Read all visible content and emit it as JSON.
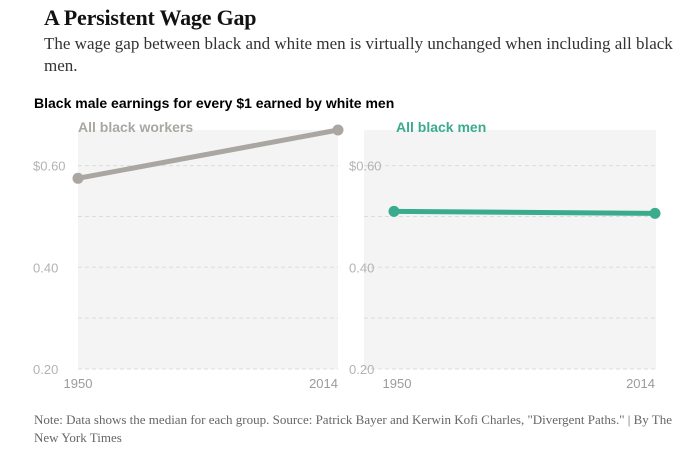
{
  "headline": "A Persistent Wage Gap",
  "dek": "The wage gap between black and white men is virtually unchanged when including all black men.",
  "chart_label": "Black male earnings for every $1 earned by white men",
  "note": "Note: Data shows the median for each group. Source: Patrick Bayer and Kerwin Kofi Charles, \"Divergent Paths.\" | By The New York Times",
  "chart_data": [
    {
      "type": "line",
      "title": "All black workers",
      "x": [
        "1950",
        "2014"
      ],
      "series": [
        {
          "values": [
            0.575,
            0.67
          ]
        }
      ],
      "ylim": [
        0.2,
        0.67
      ],
      "y_ticks": [
        {
          "value": 0.6,
          "label": "$0.60"
        },
        {
          "value": 0.4,
          "label": "0.40"
        },
        {
          "value": 0.2,
          "label": "0.20"
        }
      ],
      "minor_gridlines": [
        0.5,
        0.3
      ],
      "grid": true,
      "color": "#aaa7a3",
      "title_color": "#aaa7a3",
      "background": "#f4f4f4"
    },
    {
      "type": "line",
      "title": "All black men",
      "x": [
        "1950",
        "2014"
      ],
      "series": [
        {
          "values": [
            0.51,
            0.506
          ]
        }
      ],
      "ylim": [
        0.2,
        0.67
      ],
      "y_ticks": [
        {
          "value": 0.6,
          "label": "$0.60"
        },
        {
          "value": 0.4,
          "label": "0.40"
        },
        {
          "value": 0.2,
          "label": "0.20"
        }
      ],
      "minor_gridlines": [
        0.5,
        0.3
      ],
      "grid": true,
      "color": "#3aab8d",
      "title_color": "#3aab8d",
      "background": "#f4f4f4"
    }
  ]
}
